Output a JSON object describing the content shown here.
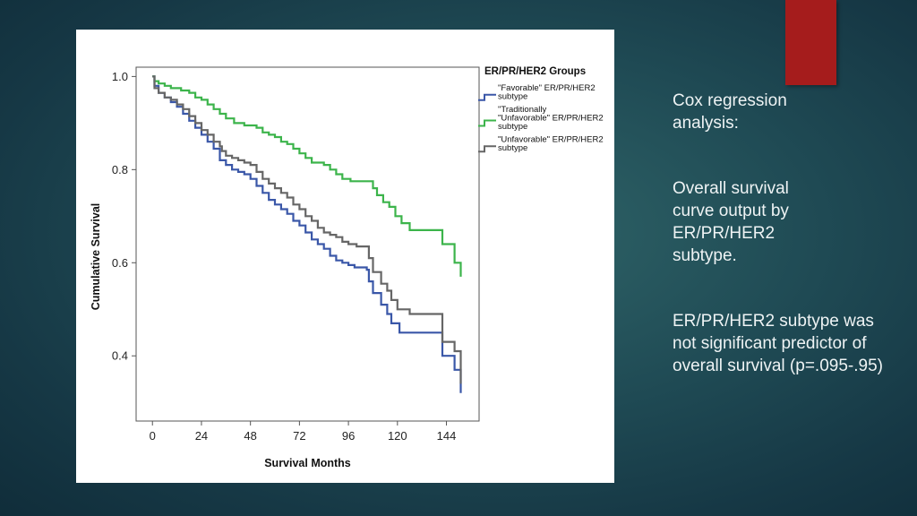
{
  "slide": {
    "text_blocks": [
      "Cox regression analysis:",
      "Overall survival curve output by ER/PR/HER2 subtype.",
      "ER/PR/HER2 subtype was not significant predictor of overall survival (p=.095-.95)"
    ],
    "accent_color": "#a51c1c"
  },
  "chart_data": {
    "type": "line",
    "step": true,
    "xlabel": "Survival Months",
    "ylabel": "Cumulative Survival",
    "xlim": [
      -8,
      160
    ],
    "ylim": [
      0.26,
      1.02
    ],
    "xticks": [
      0,
      24,
      48,
      72,
      96,
      120,
      144
    ],
    "yticks": [
      0.4,
      0.6,
      0.8,
      1.0
    ],
    "ytick_labels": [
      "0.4",
      "0.6",
      "0.8",
      "1.0"
    ],
    "grid": false,
    "legend_title": "ER/PR/HER2 Groups",
    "legend_position": "right",
    "series": [
      {
        "name": "\"Favorable\" ER/PR/HER2 subtype",
        "legend_lines": [
          "\"Favorable\" ER/PR/HER2",
          "subtype"
        ],
        "color": "#3a57a8",
        "points": [
          [
            0,
            1.0
          ],
          [
            1,
            0.98
          ],
          [
            3,
            0.965
          ],
          [
            6,
            0.955
          ],
          [
            9,
            0.945
          ],
          [
            12,
            0.935
          ],
          [
            15,
            0.92
          ],
          [
            18,
            0.905
          ],
          [
            21,
            0.89
          ],
          [
            24,
            0.875
          ],
          [
            27,
            0.86
          ],
          [
            30,
            0.845
          ],
          [
            33,
            0.83
          ],
          [
            33,
            0.82
          ],
          [
            36,
            0.81
          ],
          [
            39,
            0.8
          ],
          [
            42,
            0.795
          ],
          [
            45,
            0.79
          ],
          [
            48,
            0.78
          ],
          [
            51,
            0.765
          ],
          [
            54,
            0.75
          ],
          [
            57,
            0.735
          ],
          [
            60,
            0.725
          ],
          [
            63,
            0.715
          ],
          [
            66,
            0.705
          ],
          [
            69,
            0.69
          ],
          [
            72,
            0.68
          ],
          [
            75,
            0.665
          ],
          [
            78,
            0.65
          ],
          [
            81,
            0.64
          ],
          [
            84,
            0.63
          ],
          [
            87,
            0.615
          ],
          [
            90,
            0.605
          ],
          [
            93,
            0.6
          ],
          [
            96,
            0.595
          ],
          [
            99,
            0.59
          ],
          [
            105,
            0.585
          ],
          [
            106,
            0.56
          ],
          [
            108,
            0.535
          ],
          [
            112,
            0.51
          ],
          [
            115,
            0.49
          ],
          [
            117,
            0.47
          ],
          [
            121,
            0.45
          ],
          [
            135,
            0.45
          ],
          [
            142,
            0.45
          ],
          [
            142,
            0.4
          ],
          [
            148,
            0.39
          ],
          [
            148,
            0.37
          ],
          [
            151,
            0.37
          ],
          [
            151,
            0.32
          ]
        ]
      },
      {
        "name": "\"Traditionally \"Unfavorable\" ER/PR/HER2 subtype",
        "legend_lines": [
          "\"Traditionally",
          "\"Unfavorable\" ER/PR/HER2",
          "subtype"
        ],
        "color": "#3cb44b",
        "points": [
          [
            0,
            1.0
          ],
          [
            1,
            0.99
          ],
          [
            3,
            0.985
          ],
          [
            6,
            0.98
          ],
          [
            9,
            0.975
          ],
          [
            14,
            0.97
          ],
          [
            18,
            0.965
          ],
          [
            21,
            0.955
          ],
          [
            24,
            0.95
          ],
          [
            27,
            0.94
          ],
          [
            30,
            0.93
          ],
          [
            33,
            0.92
          ],
          [
            36,
            0.91
          ],
          [
            40,
            0.9
          ],
          [
            45,
            0.895
          ],
          [
            51,
            0.89
          ],
          [
            54,
            0.88
          ],
          [
            57,
            0.875
          ],
          [
            60,
            0.87
          ],
          [
            63,
            0.86
          ],
          [
            66,
            0.855
          ],
          [
            69,
            0.845
          ],
          [
            72,
            0.835
          ],
          [
            75,
            0.825
          ],
          [
            78,
            0.815
          ],
          [
            84,
            0.81
          ],
          [
            87,
            0.8
          ],
          [
            90,
            0.79
          ],
          [
            93,
            0.78
          ],
          [
            97,
            0.775
          ],
          [
            100,
            0.775
          ],
          [
            106,
            0.775
          ],
          [
            108,
            0.76
          ],
          [
            110,
            0.745
          ],
          [
            113,
            0.73
          ],
          [
            116,
            0.72
          ],
          [
            119,
            0.7
          ],
          [
            122,
            0.685
          ],
          [
            126,
            0.67
          ],
          [
            142,
            0.67
          ],
          [
            142,
            0.64
          ],
          [
            148,
            0.64
          ],
          [
            148,
            0.6
          ],
          [
            151,
            0.6
          ],
          [
            151,
            0.57
          ]
        ]
      },
      {
        "name": "\"Unfavorable\" ER/PR/HER2 subtype",
        "legend_lines": [
          "\"Unfavorable\" ER/PR/HER2",
          "subtype"
        ],
        "color": "#666666",
        "points": [
          [
            0,
            1.0
          ],
          [
            1,
            0.975
          ],
          [
            3,
            0.965
          ],
          [
            6,
            0.955
          ],
          [
            9,
            0.95
          ],
          [
            12,
            0.94
          ],
          [
            15,
            0.93
          ],
          [
            18,
            0.915
          ],
          [
            21,
            0.9
          ],
          [
            24,
            0.885
          ],
          [
            27,
            0.875
          ],
          [
            30,
            0.86
          ],
          [
            33,
            0.85
          ],
          [
            34,
            0.84
          ],
          [
            36,
            0.83
          ],
          [
            39,
            0.825
          ],
          [
            42,
            0.82
          ],
          [
            45,
            0.815
          ],
          [
            48,
            0.81
          ],
          [
            51,
            0.795
          ],
          [
            54,
            0.78
          ],
          [
            57,
            0.77
          ],
          [
            60,
            0.76
          ],
          [
            63,
            0.75
          ],
          [
            66,
            0.74
          ],
          [
            69,
            0.725
          ],
          [
            72,
            0.715
          ],
          [
            75,
            0.7
          ],
          [
            78,
            0.69
          ],
          [
            81,
            0.675
          ],
          [
            84,
            0.665
          ],
          [
            87,
            0.66
          ],
          [
            90,
            0.655
          ],
          [
            93,
            0.645
          ],
          [
            96,
            0.64
          ],
          [
            100,
            0.635
          ],
          [
            105,
            0.635
          ],
          [
            106,
            0.61
          ],
          [
            108,
            0.58
          ],
          [
            112,
            0.555
          ],
          [
            115,
            0.54
          ],
          [
            117,
            0.52
          ],
          [
            120,
            0.5
          ],
          [
            126,
            0.49
          ],
          [
            142,
            0.49
          ],
          [
            142,
            0.43
          ],
          [
            148,
            0.43
          ],
          [
            148,
            0.41
          ],
          [
            151,
            0.41
          ],
          [
            151,
            0.34
          ]
        ]
      }
    ]
  }
}
